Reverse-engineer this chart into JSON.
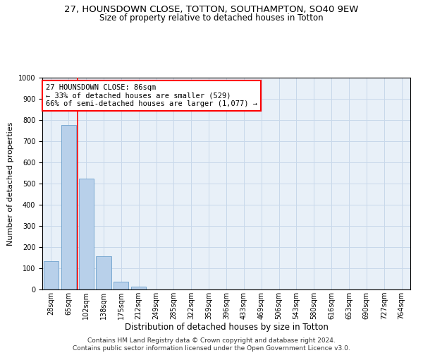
{
  "title1": "27, HOUNSDOWN CLOSE, TOTTON, SOUTHAMPTON, SO40 9EW",
  "title2": "Size of property relative to detached houses in Totton",
  "xlabel": "Distribution of detached houses by size in Totton",
  "ylabel": "Number of detached properties",
  "bar_labels": [
    "28sqm",
    "65sqm",
    "102sqm",
    "138sqm",
    "175sqm",
    "212sqm",
    "249sqm",
    "285sqm",
    "322sqm",
    "359sqm",
    "396sqm",
    "433sqm",
    "469sqm",
    "506sqm",
    "543sqm",
    "580sqm",
    "616sqm",
    "653sqm",
    "690sqm",
    "727sqm",
    "764sqm"
  ],
  "bar_values": [
    133,
    778,
    525,
    158,
    37,
    13,
    0,
    0,
    0,
    0,
    0,
    0,
    0,
    0,
    0,
    0,
    0,
    0,
    0,
    0,
    0
  ],
  "bar_color": "#b8d0ea",
  "bar_edge_color": "#6a9fcb",
  "vline_x": 1.5,
  "vline_color": "red",
  "annotation_text": "27 HOUNSDOWN CLOSE: 86sqm\n← 33% of detached houses are smaller (529)\n66% of semi-detached houses are larger (1,077) →",
  "annotation_box_color": "white",
  "annotation_box_edge_color": "red",
  "ylim": [
    0,
    1000
  ],
  "yticks": [
    0,
    100,
    200,
    300,
    400,
    500,
    600,
    700,
    800,
    900,
    1000
  ],
  "grid_color": "#c8d8ea",
  "background_color": "#e8f0f8",
  "footer1": "Contains HM Land Registry data © Crown copyright and database right 2024.",
  "footer2": "Contains public sector information licensed under the Open Government Licence v3.0.",
  "title1_fontsize": 9.5,
  "title2_fontsize": 8.5,
  "xlabel_fontsize": 8.5,
  "ylabel_fontsize": 8,
  "tick_fontsize": 7,
  "annotation_fontsize": 7.5,
  "footer_fontsize": 6.5
}
